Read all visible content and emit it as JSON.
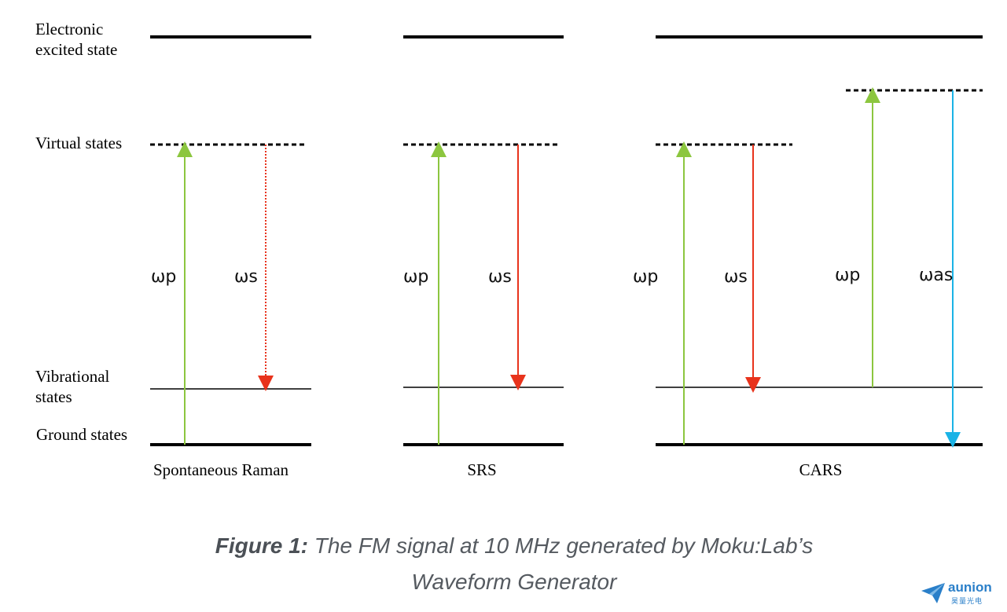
{
  "labels": {
    "electronic": "Electronic\nexcited state",
    "virtual": "Virtual states",
    "vibrational": "Vibrational\nstates",
    "ground": "Ground states"
  },
  "processes": [
    {
      "name": "Spontaneous Raman"
    },
    {
      "name": "SRS"
    },
    {
      "name": "CARS"
    }
  ],
  "arrows": {
    "pump": "ωp",
    "stokes": "ωs",
    "anti_stokes": "ωas"
  },
  "caption": {
    "bold": "Figure 1:",
    "line1": "The FM signal at 10 MHz generated by Moku:Lab’s",
    "line2": "Waveform Generator"
  },
  "logo": {
    "word": "aunion",
    "sub": "昊量光电"
  },
  "colors": {
    "pump": "#8cc63f",
    "stokes": "#e8331c",
    "anti_stokes": "#1ab3e6",
    "line": "#000000",
    "caption": "#555a60",
    "logo": "#2a7fc9"
  }
}
